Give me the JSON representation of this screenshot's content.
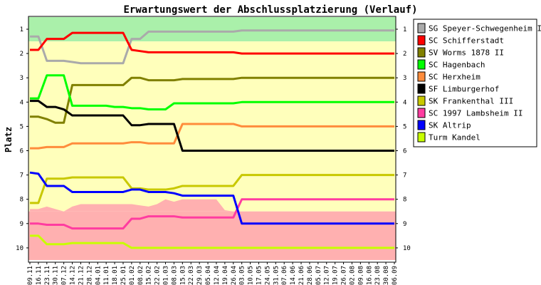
{
  "chart_data": {
    "type": "line",
    "title": "Erwartungswert der Abschlussplatzierung (Verlauf)",
    "xlabel": "",
    "ylabel": "Platz",
    "ylim": [
      1,
      10
    ],
    "y_inverted": true,
    "y_ticks": [
      "1",
      "2",
      "3",
      "4",
      "5",
      "6",
      "7",
      "8",
      "9",
      "10"
    ],
    "grid": false,
    "legend_position": "right",
    "zones": [
      {
        "name": "promotion",
        "color": "#aaf0aa",
        "from": 0.5,
        "to": 1.5
      },
      {
        "name": "safe",
        "color": "#ffffbb",
        "from": 1.5,
        "to": 8.5
      },
      {
        "name": "relegation",
        "color": "#ffb0b0",
        "from": 8.5,
        "to": 10.5
      }
    ],
    "relegation_boundary_early": [
      8.4,
      8.4,
      8.3,
      8.4,
      8.5,
      8.3,
      8.2,
      8.2,
      8.2,
      8.2,
      8.2,
      8.2,
      8.2,
      8.25,
      8.3,
      8.2,
      8.0,
      8.1,
      8.0,
      8.0,
      8.0,
      8.0,
      8.0,
      8.45,
      8.5,
      8.5,
      8.5,
      8.5,
      8.5,
      8.5,
      8.5,
      8.5
    ],
    "categories": [
      "09.11",
      "16.11",
      "23.11",
      "30.11",
      "07.12",
      "14.12",
      "21.12",
      "28.12",
      "04.01",
      "11.01",
      "18.01",
      "25.01",
      "01.02",
      "08.02",
      "15.02",
      "22.02",
      "01.03",
      "08.03",
      "15.03",
      "22.03",
      "29.03",
      "05.04",
      "12.04",
      "19.04",
      "26.04",
      "03.05",
      "10.05",
      "17.05",
      "24.05",
      "31.05",
      "07.06",
      "14.06",
      "21.06",
      "28.06",
      "05.07",
      "12.07",
      "19.07",
      "26.07",
      "02.08",
      "09.08",
      "16.08",
      "23.08",
      "30.08",
      "06.09"
    ],
    "series": [
      {
        "name": "SG Speyer-Schwegenheim II",
        "color": "#aaaaaa",
        "values": [
          1.3,
          1.3,
          2.3,
          2.3,
          2.3,
          2.35,
          2.4,
          2.4,
          2.4,
          2.4,
          2.4,
          2.4,
          1.4,
          1.4,
          1.1,
          1.1,
          1.1,
          1.1,
          1.1,
          1.1,
          1.1,
          1.1,
          1.1,
          1.1,
          1.1,
          1.05,
          1.05,
          1.05,
          1.05,
          1.05,
          1.05,
          1.05,
          1.05,
          1.05,
          1.05,
          1.05,
          1.05,
          1.05,
          1.05,
          1.05,
          1.05,
          1.05,
          1.05,
          1.05
        ]
      },
      {
        "name": "SC Schifferstadt",
        "color": "#ff0000",
        "values": [
          1.85,
          1.85,
          1.4,
          1.4,
          1.4,
          1.15,
          1.15,
          1.15,
          1.15,
          1.15,
          1.15,
          1.15,
          1.85,
          1.9,
          1.95,
          1.95,
          1.95,
          1.95,
          1.95,
          1.95,
          1.95,
          1.95,
          1.95,
          1.95,
          1.95,
          2,
          2,
          2,
          2,
          2,
          2,
          2,
          2,
          2,
          2,
          2,
          2,
          2,
          2,
          2,
          2,
          2,
          2,
          2
        ]
      },
      {
        "name": "SV Worms 1878 II",
        "color": "#808000",
        "values": [
          4.6,
          4.6,
          4.7,
          4.85,
          4.85,
          3.3,
          3.3,
          3.3,
          3.3,
          3.3,
          3.3,
          3.3,
          3.0,
          3.0,
          3.1,
          3.1,
          3.1,
          3.1,
          3.05,
          3.05,
          3.05,
          3.05,
          3.05,
          3.05,
          3.05,
          3.0,
          3.0,
          3.0,
          3.0,
          3.0,
          3.0,
          3.0,
          3.0,
          3.0,
          3.0,
          3.0,
          3.0,
          3.0,
          3.0,
          3.0,
          3.0,
          3.0,
          3.0,
          3.0
        ]
      },
      {
        "name": "SC Hagenbach",
        "color": "#00ff00",
        "values": [
          3.85,
          3.85,
          2.9,
          2.9,
          2.9,
          4.15,
          4.15,
          4.15,
          4.15,
          4.15,
          4.2,
          4.2,
          4.25,
          4.25,
          4.3,
          4.3,
          4.3,
          4.05,
          4.05,
          4.05,
          4.05,
          4.05,
          4.05,
          4.05,
          4.05,
          4.0,
          4.0,
          4.0,
          4.0,
          4.0,
          4.0,
          4.0,
          4.0,
          4.0,
          4.0,
          4.0,
          4.0,
          4.0,
          4.0,
          4.0,
          4.0,
          4.0,
          4.0,
          4.0
        ]
      },
      {
        "name": "SC Herxheim",
        "color": "#ff8c3c",
        "values": [
          5.9,
          5.9,
          5.85,
          5.85,
          5.85,
          5.7,
          5.7,
          5.7,
          5.7,
          5.7,
          5.7,
          5.7,
          5.65,
          5.65,
          5.7,
          5.7,
          5.7,
          5.7,
          4.9,
          4.9,
          4.9,
          4.9,
          4.9,
          4.9,
          4.9,
          5.0,
          5.0,
          5.0,
          5.0,
          5.0,
          5.0,
          5.0,
          5.0,
          5.0,
          5.0,
          5.0,
          5.0,
          5.0,
          5.0,
          5.0,
          5.0,
          5.0,
          5.0,
          5.0
        ]
      },
      {
        "name": "SF Limburgerhof",
        "color": "#000000",
        "values": [
          3.95,
          3.95,
          4.2,
          4.2,
          4.3,
          4.55,
          4.55,
          4.55,
          4.55,
          4.55,
          4.55,
          4.55,
          4.95,
          4.95,
          4.9,
          4.9,
          4.9,
          4.9,
          6.0,
          6.0,
          6.0,
          6.0,
          6.0,
          6.0,
          6.0,
          6.0,
          6.0,
          6.0,
          6.0,
          6.0,
          6.0,
          6.0,
          6.0,
          6.0,
          6.0,
          6.0,
          6.0,
          6.0,
          6.0,
          6.0,
          6.0,
          6.0,
          6.0,
          6.0
        ]
      },
      {
        "name": "SK Frankenthal III",
        "color": "#c8c800",
        "values": [
          8.15,
          8.15,
          7.15,
          7.15,
          7.15,
          7.1,
          7.1,
          7.1,
          7.1,
          7.1,
          7.1,
          7.1,
          7.55,
          7.55,
          7.6,
          7.6,
          7.6,
          7.55,
          7.45,
          7.45,
          7.45,
          7.45,
          7.45,
          7.45,
          7.45,
          7.0,
          7.0,
          7.0,
          7.0,
          7.0,
          7.0,
          7.0,
          7.0,
          7.0,
          7.0,
          7.0,
          7.0,
          7.0,
          7.0,
          7.0,
          7.0,
          7.0,
          7.0,
          7.0
        ]
      },
      {
        "name": "SC 1997 Lambsheim II",
        "color": "#ff3ca0",
        "values": [
          9.0,
          9.0,
          9.05,
          9.05,
          9.05,
          9.2,
          9.2,
          9.2,
          9.2,
          9.2,
          9.2,
          9.2,
          8.8,
          8.8,
          8.7,
          8.7,
          8.7,
          8.7,
          8.75,
          8.75,
          8.75,
          8.75,
          8.75,
          8.75,
          8.75,
          8.0,
          8.0,
          8.0,
          8.0,
          8.0,
          8.0,
          8.0,
          8.0,
          8.0,
          8.0,
          8.0,
          8.0,
          8.0,
          8.0,
          8.0,
          8.0,
          8.0,
          8.0,
          8.0
        ]
      },
      {
        "name": "SK Altrip",
        "color": "#0000ff",
        "values": [
          6.9,
          6.95,
          7.45,
          7.45,
          7.45,
          7.7,
          7.7,
          7.7,
          7.7,
          7.7,
          7.7,
          7.7,
          7.6,
          7.6,
          7.7,
          7.7,
          7.7,
          7.75,
          7.85,
          7.85,
          7.85,
          7.85,
          7.85,
          7.85,
          7.85,
          9.0,
          9.0,
          9.0,
          9.0,
          9.0,
          9.0,
          9.0,
          9.0,
          9.0,
          9.0,
          9.0,
          9.0,
          9.0,
          9.0,
          9.0,
          9.0,
          9.0,
          9.0,
          9.0
        ]
      },
      {
        "name": "Turm Kandel",
        "color": "#c8ff00",
        "values": [
          9.5,
          9.5,
          9.85,
          9.85,
          9.85,
          9.8,
          9.8,
          9.8,
          9.8,
          9.8,
          9.8,
          9.8,
          10.0,
          10.0,
          10.0,
          10.0,
          10.0,
          10.0,
          10.0,
          10.0,
          10.0,
          10.0,
          10.0,
          10.0,
          10.0,
          10.0,
          10.0,
          10.0,
          10.0,
          10.0,
          10.0,
          10.0,
          10.0,
          10.0,
          10.0,
          10.0,
          10.0,
          10.0,
          10.0,
          10.0,
          10.0,
          10.0,
          10.0,
          10.0
        ]
      }
    ]
  }
}
